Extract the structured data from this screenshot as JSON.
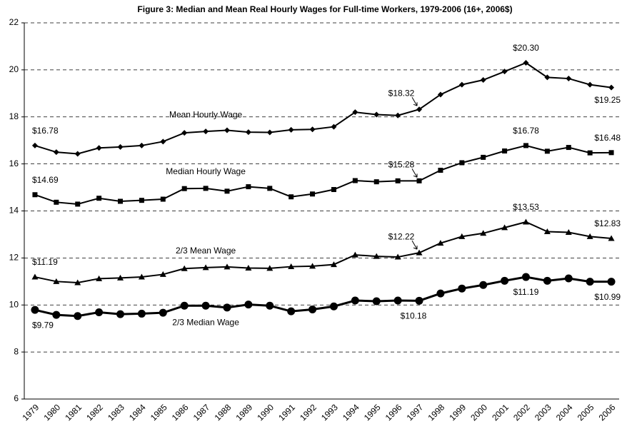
{
  "chart_data": {
    "type": "line",
    "title": "Figure 3: Median and Mean Real Hourly Wages for Full-time Workers, 1979-2006 (16+, 2006$)",
    "categories": [
      "1979",
      "1980",
      "1981",
      "1982",
      "1983",
      "1984",
      "1985",
      "1986",
      "1987",
      "1988",
      "1989",
      "1990",
      "1991",
      "1992",
      "1993",
      "1994",
      "1995",
      "1996",
      "1997",
      "1998",
      "1999",
      "2000",
      "2001",
      "2002",
      "2003",
      "2004",
      "2005",
      "2006"
    ],
    "ylim": [
      6,
      22
    ],
    "yticks": [
      6,
      8,
      10,
      12,
      14,
      16,
      18,
      20,
      22
    ],
    "grid": true,
    "series": [
      {
        "name": "Mean Hourly Wage",
        "color": "#000000",
        "marker": "diamond",
        "values": [
          16.78,
          16.5,
          16.43,
          16.68,
          16.72,
          16.78,
          16.95,
          17.32,
          17.38,
          17.43,
          17.35,
          17.34,
          17.45,
          17.47,
          17.58,
          18.2,
          18.1,
          18.06,
          18.32,
          18.95,
          19.37,
          19.57,
          19.93,
          20.3,
          19.68,
          19.63,
          19.37,
          19.25
        ],
        "value_labels": [
          "$16.78",
          null,
          null,
          null,
          null,
          null,
          null,
          null,
          null,
          null,
          null,
          null,
          null,
          null,
          null,
          null,
          null,
          null,
          "$18.32",
          null,
          null,
          null,
          null,
          "$20.30",
          null,
          null,
          null,
          "$19.25"
        ]
      },
      {
        "name": "Median Hourly Wage",
        "color": "#000000",
        "marker": "square",
        "values": [
          14.69,
          14.37,
          14.29,
          14.54,
          14.41,
          14.45,
          14.5,
          14.95,
          14.96,
          14.84,
          15.03,
          14.96,
          14.6,
          14.72,
          14.91,
          15.29,
          15.24,
          15.28,
          15.28,
          15.73,
          16.05,
          16.28,
          16.55,
          16.78,
          16.54,
          16.7,
          16.47,
          16.48
        ],
        "value_labels": [
          "$14.69",
          null,
          null,
          null,
          null,
          null,
          null,
          null,
          null,
          null,
          null,
          null,
          null,
          null,
          null,
          null,
          null,
          null,
          "$15.28",
          null,
          null,
          null,
          null,
          "$16.78",
          null,
          null,
          null,
          "$16.48"
        ]
      },
      {
        "name": "2/3 Mean Wage",
        "color": "#000000",
        "marker": "triangle",
        "values": [
          11.19,
          11.0,
          10.95,
          11.12,
          11.15,
          11.19,
          11.3,
          11.55,
          11.59,
          11.62,
          11.57,
          11.56,
          11.63,
          11.65,
          11.72,
          12.13,
          12.07,
          12.04,
          12.22,
          12.63,
          12.91,
          13.05,
          13.29,
          13.53,
          13.12,
          13.09,
          12.91,
          12.83
        ],
        "value_labels": [
          "$11.19",
          null,
          null,
          null,
          null,
          null,
          null,
          null,
          null,
          null,
          null,
          null,
          null,
          null,
          null,
          null,
          null,
          null,
          "$12.22",
          null,
          null,
          null,
          null,
          "$13.53",
          null,
          null,
          null,
          "$12.83"
        ]
      },
      {
        "name": "2/3 Median Wage",
        "color": "#000000",
        "marker": "circle",
        "values": [
          9.79,
          9.58,
          9.53,
          9.69,
          9.61,
          9.63,
          9.67,
          9.97,
          9.97,
          9.89,
          10.02,
          9.97,
          9.73,
          9.81,
          9.94,
          10.19,
          10.16,
          10.19,
          10.18,
          10.49,
          10.7,
          10.85,
          11.03,
          11.19,
          11.03,
          11.13,
          10.99,
          10.99
        ],
        "value_labels": [
          "$9.79",
          null,
          null,
          null,
          null,
          null,
          null,
          null,
          null,
          null,
          null,
          null,
          null,
          null,
          null,
          null,
          null,
          null,
          "$10.18",
          null,
          null,
          null,
          null,
          "$11.19",
          null,
          null,
          null,
          "$10.99"
        ]
      }
    ]
  }
}
